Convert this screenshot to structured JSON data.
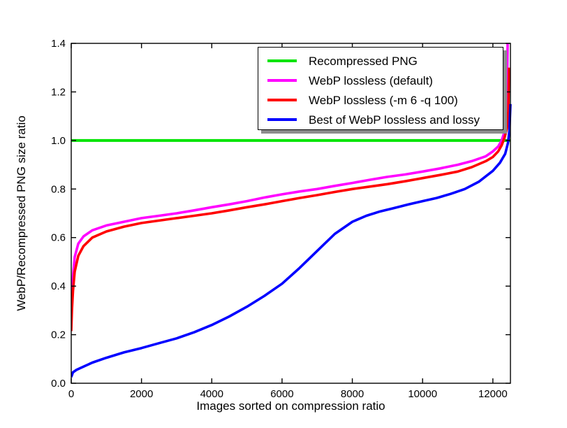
{
  "figure": {
    "background": "#ffffff",
    "axis_color": "#000000",
    "legend_shadow_color": "#8c8c8c"
  },
  "chart_data": {
    "type": "line",
    "title": "",
    "xlabel": "Images sorted on compression ratio",
    "ylabel": "WebP/Recompressed PNG size ratio",
    "xlim": [
      0,
      12500
    ],
    "ylim": [
      0.0,
      1.4
    ],
    "xticks": [
      0,
      2000,
      4000,
      6000,
      8000,
      10000,
      12000
    ],
    "yticks": [
      0.0,
      0.2,
      0.4,
      0.6,
      0.8,
      1.0,
      1.2,
      1.4
    ],
    "ytick_decimals": 1,
    "grid": false,
    "legend_position": "upper right",
    "series": [
      {
        "id": "recompressed-png",
        "name": "Recompressed PNG",
        "color": "#00e400",
        "linewidth": 4,
        "points": [
          [
            0,
            1.0
          ],
          [
            12500,
            1.0
          ]
        ]
      },
      {
        "id": "webp-lossless-default",
        "name": "WebP lossless (default)",
        "color": "#ff00ff",
        "linewidth": 3.6,
        "points": [
          [
            0,
            0.26
          ],
          [
            20,
            0.35
          ],
          [
            50,
            0.44
          ],
          [
            100,
            0.52
          ],
          [
            200,
            0.575
          ],
          [
            350,
            0.605
          ],
          [
            600,
            0.63
          ],
          [
            1000,
            0.65
          ],
          [
            1500,
            0.665
          ],
          [
            2000,
            0.68
          ],
          [
            2500,
            0.69
          ],
          [
            3000,
            0.7
          ],
          [
            3500,
            0.712
          ],
          [
            4000,
            0.725
          ],
          [
            4500,
            0.737
          ],
          [
            5000,
            0.75
          ],
          [
            5500,
            0.765
          ],
          [
            6000,
            0.778
          ],
          [
            6500,
            0.79
          ],
          [
            7000,
            0.8
          ],
          [
            7500,
            0.813
          ],
          [
            8000,
            0.825
          ],
          [
            8500,
            0.838
          ],
          [
            9000,
            0.85
          ],
          [
            9500,
            0.86
          ],
          [
            10000,
            0.872
          ],
          [
            10500,
            0.885
          ],
          [
            11000,
            0.9
          ],
          [
            11400,
            0.915
          ],
          [
            11800,
            0.935
          ],
          [
            12000,
            0.955
          ],
          [
            12150,
            0.975
          ],
          [
            12250,
            1.0
          ],
          [
            12320,
            1.03
          ],
          [
            12370,
            1.08
          ],
          [
            12400,
            1.18
          ],
          [
            12420,
            1.4
          ]
        ]
      },
      {
        "id": "webp-lossless-m6-q100",
        "name": "WebP lossless (-m 6 -q 100)",
        "color": "#ff0000",
        "linewidth": 3.6,
        "points": [
          [
            0,
            0.215
          ],
          [
            20,
            0.3
          ],
          [
            50,
            0.38
          ],
          [
            100,
            0.46
          ],
          [
            200,
            0.525
          ],
          [
            350,
            0.565
          ],
          [
            600,
            0.6
          ],
          [
            1000,
            0.625
          ],
          [
            1500,
            0.645
          ],
          [
            2000,
            0.66
          ],
          [
            2500,
            0.67
          ],
          [
            3000,
            0.68
          ],
          [
            3500,
            0.69
          ],
          [
            4000,
            0.7
          ],
          [
            4500,
            0.712
          ],
          [
            5000,
            0.725
          ],
          [
            5500,
            0.737
          ],
          [
            6000,
            0.75
          ],
          [
            6500,
            0.763
          ],
          [
            7000,
            0.775
          ],
          [
            7500,
            0.788
          ],
          [
            8000,
            0.8
          ],
          [
            8500,
            0.81
          ],
          [
            9000,
            0.82
          ],
          [
            9500,
            0.832
          ],
          [
            10000,
            0.845
          ],
          [
            10500,
            0.858
          ],
          [
            11000,
            0.872
          ],
          [
            11400,
            0.89
          ],
          [
            11800,
            0.915
          ],
          [
            12000,
            0.932
          ],
          [
            12150,
            0.955
          ],
          [
            12250,
            0.98
          ],
          [
            12330,
            1.01
          ],
          [
            12400,
            1.05
          ],
          [
            12440,
            1.12
          ],
          [
            12460,
            1.3
          ]
        ]
      },
      {
        "id": "best-of-webp-lossless-and-lossy",
        "name": "Best of WebP lossless and lossy",
        "color": "#0000ff",
        "linewidth": 3.6,
        "points": [
          [
            0,
            0.025
          ],
          [
            50,
            0.045
          ],
          [
            150,
            0.055
          ],
          [
            300,
            0.065
          ],
          [
            600,
            0.085
          ],
          [
            1000,
            0.105
          ],
          [
            1500,
            0.127
          ],
          [
            2000,
            0.145
          ],
          [
            2500,
            0.165
          ],
          [
            3000,
            0.185
          ],
          [
            3500,
            0.21
          ],
          [
            4000,
            0.24
          ],
          [
            4500,
            0.275
          ],
          [
            5000,
            0.315
          ],
          [
            5500,
            0.36
          ],
          [
            6000,
            0.41
          ],
          [
            6500,
            0.475
          ],
          [
            7000,
            0.545
          ],
          [
            7500,
            0.615
          ],
          [
            8000,
            0.665
          ],
          [
            8400,
            0.69
          ],
          [
            8800,
            0.708
          ],
          [
            9200,
            0.722
          ],
          [
            9600,
            0.737
          ],
          [
            10000,
            0.75
          ],
          [
            10400,
            0.763
          ],
          [
            10800,
            0.78
          ],
          [
            11200,
            0.8
          ],
          [
            11600,
            0.83
          ],
          [
            12000,
            0.875
          ],
          [
            12200,
            0.908
          ],
          [
            12350,
            0.945
          ],
          [
            12430,
            0.99
          ],
          [
            12470,
            1.04
          ],
          [
            12500,
            1.15
          ]
        ]
      }
    ]
  }
}
